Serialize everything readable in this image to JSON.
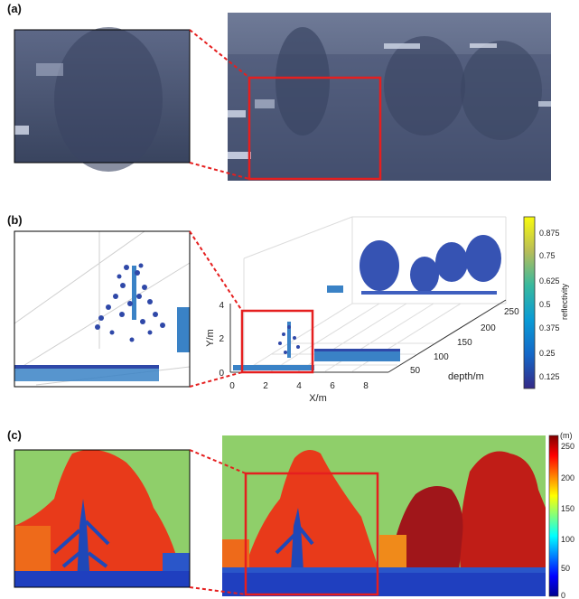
{
  "figure": {
    "panels": [
      {
        "id": "a",
        "label": "(a)"
      },
      {
        "id": "b",
        "label": "(b)"
      },
      {
        "id": "c",
        "label": "(c)"
      }
    ]
  },
  "panel_b": {
    "y_axis": {
      "label": "Y/m",
      "ticks": [
        "0",
        "2",
        "4"
      ]
    },
    "x_axis": {
      "label": "X/m",
      "ticks": [
        "0",
        "2",
        "4",
        "6",
        "8"
      ]
    },
    "depth_axis": {
      "label": "depth/m",
      "ticks": [
        "50",
        "100",
        "150",
        "200",
        "250"
      ]
    },
    "colorbar": {
      "label": "reflectivity",
      "ticks": [
        "0.875",
        "0.75",
        "0.625",
        "0.5",
        "0.375",
        "0.25",
        "0.125"
      ]
    }
  },
  "panel_c": {
    "colorbar": {
      "unit": "(m)",
      "ticks": [
        "250",
        "200",
        "150",
        "100",
        "50",
        "0"
      ]
    }
  },
  "colors": {
    "highlight": "#e51f1f",
    "sky_green": "#8fcf6a",
    "tree_red": "#e83a1a",
    "dark_red": "#a0161a",
    "ground_blue": "#1f3fbf"
  }
}
